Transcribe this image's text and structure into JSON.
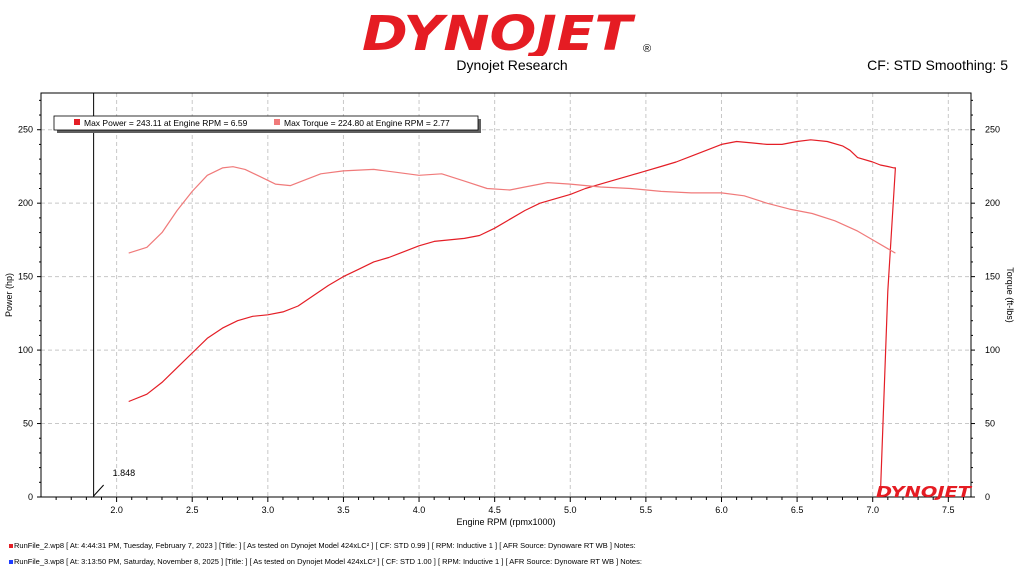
{
  "brand": {
    "name": "DYNOJET",
    "registered": "®",
    "company": "Dynojet Research",
    "watermark": "DYNOJET"
  },
  "cf_info": "CF: STD Smoothing: 5",
  "colors": {
    "brand_red": "#e51c23",
    "power": "#e41e26",
    "torque": "#f07a7a",
    "grid": "#c8c8c8",
    "run2": "#1e3cff"
  },
  "cursor": {
    "rpm": 1.848,
    "label": "1.848"
  },
  "chart_data": {
    "type": "line",
    "xlabel": "Engine RPM (rpmx1000)",
    "ylabel_left": "Power (hp)",
    "ylabel_right": "Torque (ft-lbs)",
    "xlim": [
      1.5,
      7.65
    ],
    "ylim": [
      0,
      275
    ],
    "x_ticks": [
      "2.0",
      "2.5",
      "3.0",
      "3.5",
      "4.0",
      "4.5",
      "5.0",
      "5.5",
      "6.0",
      "6.5",
      "7.0",
      "7.5"
    ],
    "y_ticks": [
      "0",
      "50",
      "100",
      "150",
      "200",
      "250"
    ],
    "grid": true,
    "legend_position": "top-left",
    "legend": [
      "Max Power = 243.11 at Engine RPM = 6.59",
      "Max Torque = 224.80 at Engine RPM = 2.77"
    ],
    "series": [
      {
        "name": "Max Power = 243.11 at Engine RPM = 6.59",
        "x": [
          2.08,
          2.2,
          2.3,
          2.4,
          2.5,
          2.6,
          2.7,
          2.8,
          2.9,
          3.0,
          3.1,
          3.2,
          3.3,
          3.4,
          3.5,
          3.6,
          3.7,
          3.8,
          3.9,
          4.0,
          4.1,
          4.2,
          4.3,
          4.4,
          4.5,
          4.6,
          4.7,
          4.8,
          4.9,
          5.0,
          5.1,
          5.2,
          5.3,
          5.4,
          5.5,
          5.6,
          5.7,
          5.8,
          5.9,
          6.0,
          6.1,
          6.2,
          6.3,
          6.4,
          6.5,
          6.59,
          6.7,
          6.8,
          6.85,
          6.9,
          7.0,
          7.05,
          7.1,
          7.14,
          7.15,
          7.1,
          7.05
        ],
        "values": [
          65,
          70,
          78,
          88,
          98,
          108,
          115,
          120,
          123,
          124,
          126,
          130,
          137,
          144,
          150,
          155,
          160,
          163,
          167,
          171,
          174,
          175,
          176,
          178,
          183,
          189,
          195,
          200,
          203,
          206,
          210,
          213,
          216,
          219,
          222,
          225,
          228,
          232,
          236,
          240,
          242,
          241,
          240,
          240,
          242,
          243.11,
          242,
          239,
          236,
          231,
          228,
          226,
          225,
          224,
          224,
          140,
          0
        ]
      },
      {
        "name": "Max Torque = 224.80 at Engine RPM = 2.77",
        "x": [
          2.08,
          2.2,
          2.3,
          2.4,
          2.5,
          2.6,
          2.7,
          2.77,
          2.85,
          2.95,
          3.05,
          3.15,
          3.25,
          3.35,
          3.5,
          3.7,
          3.85,
          4.0,
          4.15,
          4.3,
          4.45,
          4.6,
          4.7,
          4.85,
          5.0,
          5.2,
          5.4,
          5.6,
          5.8,
          6.0,
          6.15,
          6.3,
          6.45,
          6.6,
          6.75,
          6.9,
          7.0,
          7.1,
          7.15
        ],
        "values": [
          166,
          170,
          180,
          195,
          208,
          219,
          224,
          224.8,
          223,
          218,
          213,
          212,
          216,
          220,
          222,
          223,
          221,
          219,
          220,
          215,
          210,
          209,
          211,
          214,
          213,
          211,
          210,
          208,
          207,
          207,
          205,
          200,
          196,
          193,
          188,
          181,
          175,
          169,
          166
        ]
      }
    ]
  },
  "footer": [
    "RunFile_2.wp8 [ At: 4:44:31 PM, Tuesday, February 7, 2023 ] [Title: ]  [ As tested on Dynojet Model 424xLC² ] [ CF: STD 0.99 ] [ RPM: Inductive 1 ] [ AFR Source: Dynoware RT WB ] Notes:",
    "RunFile_3.wp8 [ At: 3:13:50 PM, Saturday, November 8, 2025 ] [Title: ]  [ As tested on Dynojet Model 424xLC² ] [ CF: STD 1.00 ] [ RPM: Inductive 1 ] [ AFR Source: Dynoware RT WB ] Notes:"
  ]
}
